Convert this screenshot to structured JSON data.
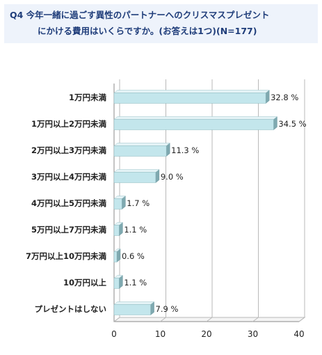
{
  "title": {
    "line1": "Q4  今年一緒に過ごす異性のパートナーへのクリスマスプレゼント",
    "line2": "にかける費用はいくらですか。(お答えは1つ)(N=177)"
  },
  "colors": {
    "bar_front": "#c3e6ec",
    "bar_top": "#e4f3f6",
    "bar_side": "#7fa9b0",
    "title_bg": "#eef3fb",
    "title_text": "#1f3d7a",
    "grid": "#b9b9b9"
  },
  "chart_data": {
    "type": "bar",
    "orientation": "horizontal",
    "categories": [
      "1万円未満",
      "1万円以上2万円未満",
      "2万円以上3万円未満",
      "3万円以上4万円未満",
      "4万円以上5万円未満",
      "5万円以上7万円未満",
      "7万円以上10万円未満",
      "10万円以上",
      "プレゼントはしない"
    ],
    "values": [
      32.8,
      34.5,
      11.3,
      9.0,
      1.7,
      1.1,
      0.6,
      1.1,
      7.9
    ],
    "value_labels": [
      "32.8 %",
      "34.5 %",
      "11.3 %",
      "9.0 %",
      "1.7 %",
      "1.1 %",
      "0.6 %",
      "1.1 %",
      "7.9 %"
    ],
    "xlim": [
      0,
      40
    ],
    "xticks": [
      "0",
      "10",
      "20",
      "30",
      "40"
    ],
    "grid": true,
    "xlabel": "",
    "ylabel": ""
  }
}
